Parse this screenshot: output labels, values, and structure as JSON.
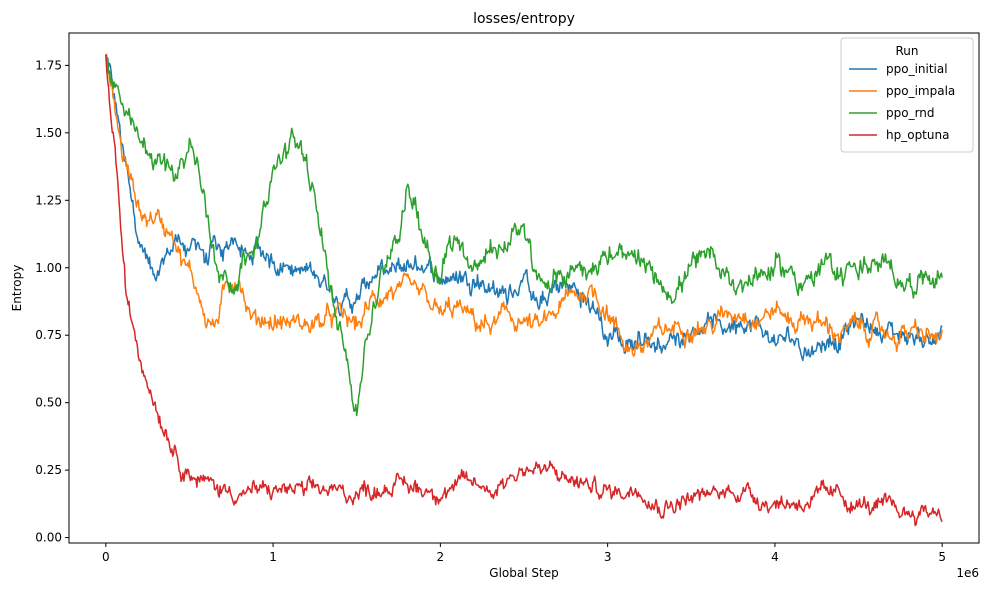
{
  "chart_data": {
    "type": "line",
    "title": "losses/entropy",
    "xlabel": "Global Step",
    "ylabel": "Entropy",
    "x_scale_label": "1e6",
    "xlim": [
      -0.22,
      5.22
    ],
    "ylim": [
      -0.02,
      1.87
    ],
    "x_ticks": [
      0,
      1,
      2,
      3,
      4,
      5
    ],
    "x_tick_labels": [
      "0",
      "1",
      "2",
      "3",
      "4",
      "5"
    ],
    "y_ticks": [
      0.0,
      0.25,
      0.5,
      0.75,
      1.0,
      1.25,
      1.5,
      1.75
    ],
    "y_tick_labels": [
      "0.00",
      "0.25",
      "0.50",
      "0.75",
      "1.00",
      "1.25",
      "1.50",
      "1.75"
    ],
    "grid": false,
    "legend": {
      "title": "Run",
      "position": "top-right"
    },
    "series": [
      {
        "name": "ppo_initial",
        "color": "#1f77b4",
        "noise": 0.035,
        "points": [
          [
            0,
            1.79
          ],
          [
            0.05,
            1.62
          ],
          [
            0.1,
            1.45
          ],
          [
            0.15,
            1.3
          ],
          [
            0.2,
            1.12
          ],
          [
            0.25,
            1.02
          ],
          [
            0.3,
            0.92
          ],
          [
            0.35,
            1.0
          ],
          [
            0.4,
            1.08
          ],
          [
            0.45,
            1.12
          ],
          [
            0.5,
            1.05
          ],
          [
            0.55,
            1.1
          ],
          [
            0.6,
            1.03
          ],
          [
            0.65,
            1.07
          ],
          [
            0.7,
            1.0
          ],
          [
            0.75,
            1.12
          ],
          [
            0.8,
            1.08
          ],
          [
            0.85,
            1.02
          ],
          [
            0.9,
            1.07
          ],
          [
            0.95,
            1.05
          ],
          [
            1.0,
            1.03
          ],
          [
            1.1,
            1.02
          ],
          [
            1.2,
            0.98
          ],
          [
            1.3,
            0.96
          ],
          [
            1.4,
            0.9
          ],
          [
            1.5,
            0.87
          ],
          [
            1.6,
            0.98
          ],
          [
            1.7,
            0.97
          ],
          [
            1.8,
            1.0
          ],
          [
            1.9,
            1.02
          ],
          [
            2.0,
            0.97
          ],
          [
            2.1,
            0.96
          ],
          [
            2.2,
            0.98
          ],
          [
            2.3,
            0.93
          ],
          [
            2.4,
            0.9
          ],
          [
            2.5,
            0.96
          ],
          [
            2.6,
            0.85
          ],
          [
            2.7,
            0.93
          ],
          [
            2.8,
            0.92
          ],
          [
            2.9,
            0.85
          ],
          [
            2.95,
            0.82
          ],
          [
            3.0,
            0.72
          ],
          [
            3.05,
            0.78
          ],
          [
            3.1,
            0.7
          ],
          [
            3.2,
            0.75
          ],
          [
            3.3,
            0.72
          ],
          [
            3.4,
            0.74
          ],
          [
            3.5,
            0.78
          ],
          [
            3.6,
            0.8
          ],
          [
            3.7,
            0.78
          ],
          [
            3.8,
            0.82
          ],
          [
            3.9,
            0.78
          ],
          [
            4.0,
            0.72
          ],
          [
            4.1,
            0.74
          ],
          [
            4.2,
            0.7
          ],
          [
            4.3,
            0.73
          ],
          [
            4.4,
            0.75
          ],
          [
            4.5,
            0.8
          ],
          [
            4.6,
            0.78
          ],
          [
            4.7,
            0.76
          ],
          [
            4.8,
            0.75
          ],
          [
            4.9,
            0.74
          ],
          [
            5.0,
            0.75
          ]
        ]
      },
      {
        "name": "ppo_impala",
        "color": "#ff7f0e",
        "noise": 0.035,
        "points": [
          [
            0,
            1.79
          ],
          [
            0.05,
            1.6
          ],
          [
            0.1,
            1.42
          ],
          [
            0.15,
            1.32
          ],
          [
            0.2,
            1.22
          ],
          [
            0.25,
            1.18
          ],
          [
            0.3,
            1.2
          ],
          [
            0.35,
            1.15
          ],
          [
            0.4,
            1.16
          ],
          [
            0.45,
            1.05
          ],
          [
            0.5,
            0.98
          ],
          [
            0.55,
            0.92
          ],
          [
            0.6,
            0.82
          ],
          [
            0.65,
            0.78
          ],
          [
            0.7,
            0.88
          ],
          [
            0.75,
            0.95
          ],
          [
            0.8,
            0.98
          ],
          [
            0.85,
            0.85
          ],
          [
            0.9,
            0.8
          ],
          [
            0.95,
            0.82
          ],
          [
            1.0,
            0.8
          ],
          [
            1.1,
            0.8
          ],
          [
            1.2,
            0.79
          ],
          [
            1.3,
            0.8
          ],
          [
            1.4,
            0.82
          ],
          [
            1.5,
            0.78
          ],
          [
            1.6,
            0.88
          ],
          [
            1.7,
            0.92
          ],
          [
            1.8,
            0.9
          ],
          [
            1.9,
            0.88
          ],
          [
            2.0,
            0.82
          ],
          [
            2.1,
            0.85
          ],
          [
            2.2,
            0.8
          ],
          [
            2.3,
            0.78
          ],
          [
            2.4,
            0.82
          ],
          [
            2.5,
            0.8
          ],
          [
            2.6,
            0.77
          ],
          [
            2.7,
            0.84
          ],
          [
            2.8,
            0.9
          ],
          [
            2.9,
            0.92
          ],
          [
            3.0,
            0.85
          ],
          [
            3.05,
            0.78
          ],
          [
            3.1,
            0.72
          ],
          [
            3.2,
            0.7
          ],
          [
            3.3,
            0.75
          ],
          [
            3.4,
            0.78
          ],
          [
            3.5,
            0.8
          ],
          [
            3.6,
            0.78
          ],
          [
            3.7,
            0.82
          ],
          [
            3.8,
            0.85
          ],
          [
            3.9,
            0.82
          ],
          [
            4.0,
            0.85
          ],
          [
            4.1,
            0.8
          ],
          [
            4.2,
            0.82
          ],
          [
            4.3,
            0.78
          ],
          [
            4.4,
            0.76
          ],
          [
            4.5,
            0.78
          ],
          [
            4.6,
            0.77
          ],
          [
            4.7,
            0.75
          ],
          [
            4.8,
            0.76
          ],
          [
            4.9,
            0.74
          ],
          [
            5.0,
            0.74
          ]
        ]
      },
      {
        "name": "ppo_rnd",
        "color": "#2ca02c",
        "noise": 0.04,
        "points": [
          [
            0,
            1.79
          ],
          [
            0.05,
            1.68
          ],
          [
            0.1,
            1.6
          ],
          [
            0.15,
            1.5
          ],
          [
            0.2,
            1.45
          ],
          [
            0.25,
            1.42
          ],
          [
            0.3,
            1.4
          ],
          [
            0.35,
            1.38
          ],
          [
            0.4,
            1.35
          ],
          [
            0.45,
            1.4
          ],
          [
            0.5,
            1.45
          ],
          [
            0.55,
            1.38
          ],
          [
            0.6,
            1.2
          ],
          [
            0.65,
            1.05
          ],
          [
            0.7,
            0.98
          ],
          [
            0.75,
            0.95
          ],
          [
            0.8,
            0.98
          ],
          [
            0.85,
            1.05
          ],
          [
            0.9,
            1.1
          ],
          [
            0.95,
            1.25
          ],
          [
            1.0,
            1.35
          ],
          [
            1.05,
            1.4
          ],
          [
            1.1,
            1.45
          ],
          [
            1.15,
            1.45
          ],
          [
            1.2,
            1.4
          ],
          [
            1.25,
            1.22
          ],
          [
            1.3,
            1.05
          ],
          [
            1.35,
            0.92
          ],
          [
            1.4,
            0.82
          ],
          [
            1.45,
            0.65
          ],
          [
            1.5,
            0.45
          ],
          [
            1.55,
            0.72
          ],
          [
            1.6,
            0.85
          ],
          [
            1.65,
            0.95
          ],
          [
            1.7,
            1.08
          ],
          [
            1.75,
            1.15
          ],
          [
            1.8,
            1.28
          ],
          [
            1.85,
            1.25
          ],
          [
            1.9,
            1.12
          ],
          [
            1.95,
            1.05
          ],
          [
            2.0,
            0.98
          ],
          [
            2.05,
            1.08
          ],
          [
            2.1,
            1.12
          ],
          [
            2.2,
            1.0
          ],
          [
            2.3,
            1.05
          ],
          [
            2.4,
            1.08
          ],
          [
            2.45,
            1.18
          ],
          [
            2.5,
            1.12
          ],
          [
            2.55,
            1.0
          ],
          [
            2.6,
            0.92
          ],
          [
            2.7,
            0.95
          ],
          [
            2.8,
            1.0
          ],
          [
            2.9,
            1.02
          ],
          [
            3.0,
            1.05
          ],
          [
            3.1,
            1.02
          ],
          [
            3.2,
            1.0
          ],
          [
            3.3,
            0.95
          ],
          [
            3.4,
            0.92
          ],
          [
            3.5,
            1.0
          ],
          [
            3.6,
            1.02
          ],
          [
            3.7,
            0.98
          ],
          [
            3.8,
            0.95
          ],
          [
            3.9,
            0.98
          ],
          [
            4.0,
            1.0
          ],
          [
            4.1,
            0.98
          ],
          [
            4.2,
            0.95
          ],
          [
            4.3,
            1.0
          ],
          [
            4.4,
            0.98
          ],
          [
            4.5,
            1.02
          ],
          [
            4.6,
            1.0
          ],
          [
            4.7,
            0.98
          ],
          [
            4.8,
            0.95
          ],
          [
            4.9,
            0.97
          ],
          [
            5.0,
            0.98
          ]
        ]
      },
      {
        "name": "hp_optuna",
        "color": "#d62728",
        "noise": 0.03,
        "points": [
          [
            0,
            1.79
          ],
          [
            0.02,
            1.62
          ],
          [
            0.05,
            1.48
          ],
          [
            0.08,
            1.25
          ],
          [
            0.1,
            1.05
          ],
          [
            0.12,
            0.9
          ],
          [
            0.15,
            0.8
          ],
          [
            0.18,
            0.75
          ],
          [
            0.2,
            0.68
          ],
          [
            0.25,
            0.6
          ],
          [
            0.3,
            0.5
          ],
          [
            0.35,
            0.42
          ],
          [
            0.4,
            0.35
          ],
          [
            0.45,
            0.28
          ],
          [
            0.5,
            0.25
          ],
          [
            0.55,
            0.22
          ],
          [
            0.6,
            0.2
          ],
          [
            0.7,
            0.18
          ],
          [
            0.8,
            0.17
          ],
          [
            0.9,
            0.17
          ],
          [
            1.0,
            0.17
          ],
          [
            1.1,
            0.18
          ],
          [
            1.2,
            0.16
          ],
          [
            1.3,
            0.18
          ],
          [
            1.4,
            0.16
          ],
          [
            1.5,
            0.17
          ],
          [
            1.6,
            0.18
          ],
          [
            1.7,
            0.2
          ],
          [
            1.8,
            0.19
          ],
          [
            1.9,
            0.18
          ],
          [
            2.0,
            0.18
          ],
          [
            2.1,
            0.19
          ],
          [
            2.2,
            0.2
          ],
          [
            2.3,
            0.18
          ],
          [
            2.4,
            0.22
          ],
          [
            2.5,
            0.26
          ],
          [
            2.6,
            0.25
          ],
          [
            2.7,
            0.23
          ],
          [
            2.8,
            0.21
          ],
          [
            2.9,
            0.19
          ],
          [
            3.0,
            0.17
          ],
          [
            3.1,
            0.17
          ],
          [
            3.2,
            0.2
          ],
          [
            3.3,
            0.12
          ],
          [
            3.4,
            0.13
          ],
          [
            3.5,
            0.15
          ],
          [
            3.6,
            0.15
          ],
          [
            3.7,
            0.17
          ],
          [
            3.8,
            0.18
          ],
          [
            3.9,
            0.15
          ],
          [
            4.0,
            0.13
          ],
          [
            4.1,
            0.13
          ],
          [
            4.2,
            0.14
          ],
          [
            4.3,
            0.15
          ],
          [
            4.4,
            0.15
          ],
          [
            4.5,
            0.12
          ],
          [
            4.6,
            0.11
          ],
          [
            4.7,
            0.1
          ],
          [
            4.8,
            0.09
          ],
          [
            4.9,
            0.1
          ],
          [
            5.0,
            0.1
          ]
        ]
      }
    ]
  }
}
